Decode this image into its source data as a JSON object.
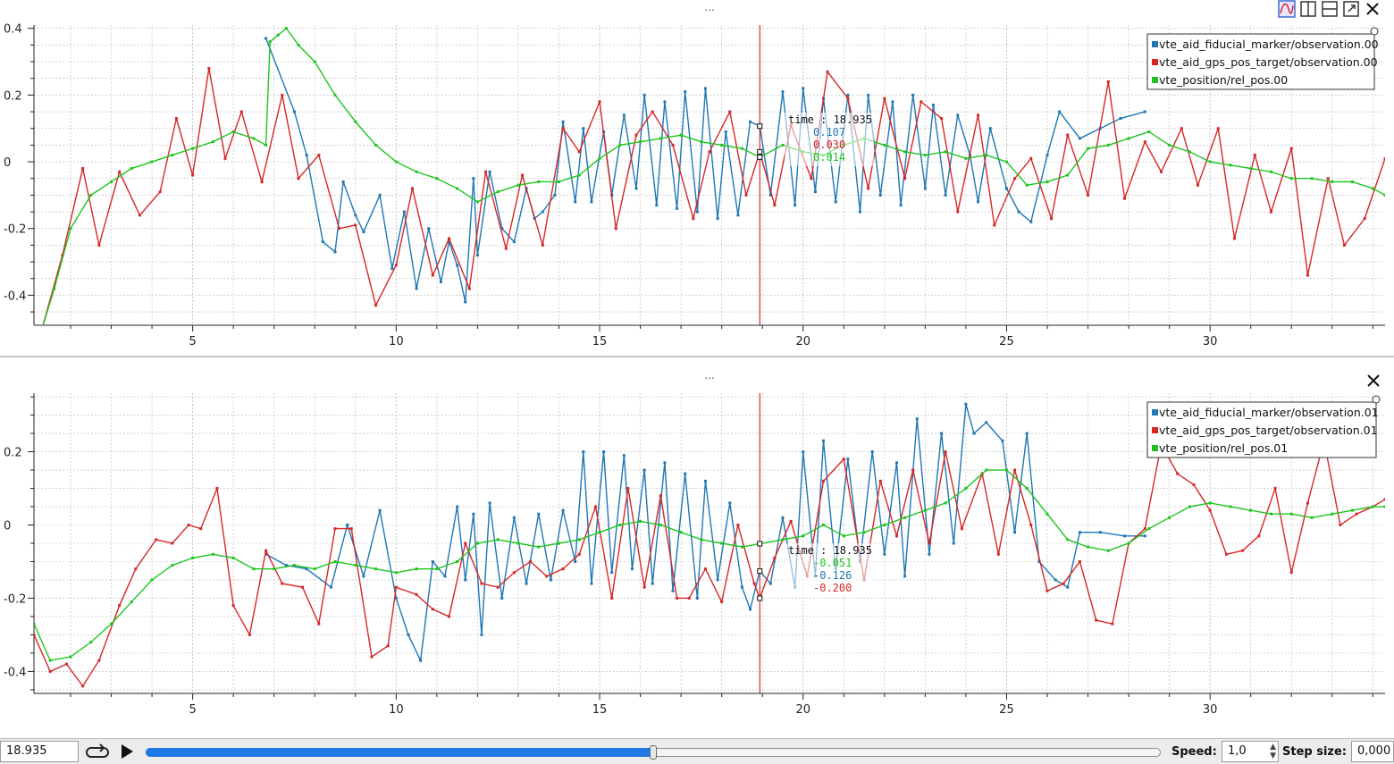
{
  "colors": {
    "blue": "#1f77b4",
    "red": "#d62728",
    "green": "#1ec41e",
    "tracker": "#cc0000",
    "grid": "#b8b8b8"
  },
  "plot_top": {
    "title": "...",
    "tooltip": {
      "label": "time : 18.935",
      "values": [
        "0.107",
        "0.030",
        "0.014"
      ],
      "colors": [
        "#1f77b4",
        "#d62728",
        "#1ec41e"
      ]
    },
    "legend": [
      "vte_aid_fiducial_marker/observation.00",
      "vte_aid_gps_pos_target/observation.00",
      "vte_position/rel_pos.00"
    ]
  },
  "plot_bottom": {
    "title": "...",
    "tooltip": {
      "label": "time : 18.935",
      "values": [
        "-0.051",
        "-0.126",
        "-0.200"
      ],
      "colors": [
        "#1ec41e",
        "#1f77b4",
        "#d62728"
      ]
    },
    "legend": [
      "vte_aid_fiducial_marker/observation.01",
      "vte_aid_gps_pos_target/observation.01",
      "vte_position/rel_pos.01"
    ]
  },
  "toolbar": {
    "icons": [
      "plot-layout-icon",
      "split-vertical-icon",
      "split-horizontal-icon",
      "fullscreen-icon",
      "close-icon"
    ]
  },
  "playback": {
    "current_time": "18.935",
    "speed_label": "Speed:",
    "speed_value": "1,0",
    "step_label": "Step size:",
    "step_value": "0,000",
    "progress": 0.5,
    "loop_icon": "loop-icon",
    "play_icon": "play-icon"
  },
  "chart_data": [
    {
      "type": "line",
      "xlim": [
        1.1,
        34.3
      ],
      "ylim": [
        -0.49,
        0.41
      ],
      "xticks": [
        5,
        10,
        15,
        20,
        25,
        30
      ],
      "yticks": [
        -0.4,
        -0.2,
        0,
        0.2,
        0.4
      ],
      "tracker_x": 18.935,
      "legend_position": "top-right",
      "grid": true,
      "series": [
        {
          "name": "vte_aid_fiducial_marker/observation.00",
          "color": "#1f77b4",
          "x": [
            6.8,
            7.5,
            7.8,
            8.2,
            8.5,
            8.7,
            9.0,
            9.2,
            9.6,
            9.9,
            10.2,
            10.5,
            10.8,
            11.1,
            11.3,
            11.5,
            11.7,
            11.9,
            12.0,
            12.3,
            12.6,
            12.9,
            13.2,
            13.4,
            13.6,
            13.9,
            14.1,
            14.4,
            14.6,
            14.8,
            15.1,
            15.3,
            15.6,
            15.9,
            16.1,
            16.4,
            16.6,
            16.9,
            17.1,
            17.4,
            17.6,
            17.9,
            18.1,
            18.4,
            18.7,
            18.935,
            19.2,
            19.5,
            19.8,
            20.0,
            20.3,
            20.5,
            20.8,
            21.1,
            21.4,
            21.6,
            21.9,
            22.2,
            22.4,
            22.7,
            23.0,
            23.2,
            23.5,
            23.8,
            24.1,
            24.3,
            24.6,
            25.0,
            25.3,
            25.6,
            26.0,
            26.3,
            26.8,
            27.3,
            27.8,
            28.4
          ],
          "y": [
            0.37,
            0.15,
            0.02,
            -0.24,
            -0.27,
            -0.06,
            -0.16,
            -0.21,
            -0.1,
            -0.32,
            -0.15,
            -0.38,
            -0.2,
            -0.36,
            -0.24,
            -0.31,
            -0.42,
            -0.05,
            -0.28,
            -0.03,
            -0.2,
            -0.24,
            -0.08,
            -0.17,
            -0.15,
            -0.1,
            0.12,
            -0.12,
            0.1,
            -0.12,
            0.09,
            -0.1,
            0.14,
            -0.08,
            0.2,
            -0.13,
            0.18,
            -0.14,
            0.21,
            -0.15,
            0.22,
            -0.17,
            0.09,
            -0.16,
            0.12,
            0.107,
            -0.1,
            0.21,
            -0.13,
            0.22,
            -0.09,
            0.19,
            -0.12,
            0.2,
            -0.15,
            0.2,
            -0.1,
            0.18,
            -0.13,
            0.2,
            -0.08,
            0.17,
            -0.1,
            0.14,
            0.02,
            -0.12,
            0.1,
            -0.08,
            -0.15,
            -0.18,
            0.02,
            0.15,
            0.07,
            0.1,
            0.13,
            0.15
          ]
        },
        {
          "name": "vte_aid_gps_pos_target/observation.00",
          "color": "#d62728",
          "x": [
            1.3,
            1.8,
            2.3,
            2.7,
            3.2,
            3.7,
            4.2,
            4.6,
            5.0,
            5.4,
            5.8,
            6.2,
            6.7,
            7.2,
            7.6,
            8.1,
            8.6,
            9.0,
            9.5,
            10.0,
            10.4,
            10.9,
            11.3,
            11.8,
            12.2,
            12.7,
            13.1,
            13.6,
            14.1,
            14.5,
            15.0,
            15.4,
            15.9,
            16.3,
            16.8,
            17.3,
            17.7,
            18.2,
            18.6,
            18.935,
            19.3,
            19.7,
            20.2,
            20.6,
            21.1,
            21.6,
            22.0,
            22.5,
            22.9,
            23.4,
            23.8,
            24.3,
            24.7,
            25.2,
            25.6,
            26.1,
            26.5,
            27.0,
            27.5,
            27.9,
            28.4,
            28.8,
            29.3,
            29.7,
            30.2,
            30.6,
            31.1,
            31.5,
            32.0,
            32.4,
            32.9,
            33.3,
            33.8,
            34.3
          ],
          "y": [
            -0.5,
            -0.28,
            -0.02,
            -0.25,
            -0.03,
            -0.16,
            -0.09,
            0.13,
            -0.04,
            0.28,
            0.01,
            0.15,
            -0.06,
            0.2,
            -0.05,
            0.02,
            -0.2,
            -0.19,
            -0.43,
            -0.31,
            -0.08,
            -0.34,
            -0.23,
            -0.38,
            -0.03,
            -0.26,
            -0.04,
            -0.25,
            0.1,
            0.03,
            0.18,
            -0.2,
            0.08,
            0.15,
            0.05,
            -0.17,
            0.03,
            0.15,
            -0.1,
            0.03,
            -0.13,
            0.11,
            -0.05,
            0.27,
            0.19,
            -0.08,
            0.19,
            -0.05,
            0.18,
            0.13,
            -0.15,
            0.14,
            -0.19,
            -0.05,
            0.01,
            -0.17,
            0.08,
            -0.1,
            0.24,
            -0.11,
            0.06,
            -0.03,
            0.1,
            -0.07,
            0.1,
            -0.23,
            0.02,
            -0.15,
            0.04,
            -0.34,
            -0.05,
            -0.25,
            -0.17,
            0.01
          ]
        },
        {
          "name": "vte_position/rel_pos.00",
          "color": "#1ec41e",
          "x": [
            1.3,
            1.6,
            2.0,
            2.5,
            3.0,
            3.5,
            4.0,
            4.5,
            5.0,
            5.5,
            6.0,
            6.5,
            6.8,
            6.9,
            7.1,
            7.3,
            7.6,
            8.0,
            8.5,
            9.0,
            9.5,
            10.0,
            10.5,
            11.0,
            11.5,
            12.0,
            12.5,
            13.0,
            13.5,
            14.0,
            14.5,
            15.0,
            15.5,
            16.0,
            16.5,
            17.0,
            17.5,
            18.0,
            18.5,
            18.935,
            19.5,
            20.0,
            20.5,
            21.0,
            21.5,
            22.0,
            22.5,
            23.0,
            23.5,
            24.0,
            24.5,
            25.0,
            25.5,
            26.0,
            26.5,
            27.0,
            27.5,
            28.0,
            28.5,
            29.0,
            29.5,
            30.0,
            30.5,
            31.0,
            31.5,
            32.0,
            32.5,
            33.0,
            33.5,
            34.0,
            34.3
          ],
          "y": [
            -0.5,
            -0.38,
            -0.2,
            -0.1,
            -0.06,
            -0.02,
            0.0,
            0.02,
            0.04,
            0.06,
            0.09,
            0.07,
            0.05,
            0.36,
            0.38,
            0.4,
            0.35,
            0.3,
            0.2,
            0.12,
            0.05,
            0.0,
            -0.03,
            -0.05,
            -0.08,
            -0.12,
            -0.09,
            -0.07,
            -0.06,
            -0.06,
            -0.04,
            0.01,
            0.05,
            0.06,
            0.07,
            0.08,
            0.06,
            0.05,
            0.04,
            0.014,
            0.05,
            0.03,
            0.02,
            0.05,
            0.07,
            0.05,
            0.03,
            0.02,
            0.03,
            0.01,
            0.02,
            0.0,
            -0.07,
            -0.06,
            -0.04,
            0.04,
            0.05,
            0.07,
            0.09,
            0.05,
            0.03,
            0.0,
            -0.01,
            -0.02,
            -0.03,
            -0.05,
            -0.05,
            -0.06,
            -0.06,
            -0.08,
            -0.1
          ]
        }
      ]
    },
    {
      "type": "line",
      "xlim": [
        1.1,
        34.3
      ],
      "ylim": [
        -0.46,
        0.36
      ],
      "xticks": [
        5,
        10,
        15,
        20,
        25,
        30
      ],
      "yticks": [
        -0.4,
        -0.2,
        0,
        0.2
      ],
      "tracker_x": 18.935,
      "legend_position": "top-right",
      "grid": true,
      "series": [
        {
          "name": "vte_aid_fiducial_marker/observation.01",
          "color": "#1f77b4",
          "x": [
            6.8,
            7.3,
            7.8,
            8.4,
            8.8,
            9.2,
            9.6,
            10.0,
            10.3,
            10.6,
            10.9,
            11.2,
            11.5,
            11.7,
            11.9,
            12.1,
            12.3,
            12.6,
            12.9,
            13.2,
            13.5,
            13.8,
            14.1,
            14.4,
            14.6,
            14.8,
            15.1,
            15.3,
            15.6,
            15.8,
            16.1,
            16.3,
            16.6,
            16.8,
            17.1,
            17.4,
            17.6,
            17.9,
            18.2,
            18.5,
            18.7,
            18.935,
            19.2,
            19.5,
            19.8,
            20.0,
            20.3,
            20.5,
            20.8,
            21.1,
            21.4,
            21.7,
            22.0,
            22.3,
            22.5,
            22.8,
            23.1,
            23.4,
            23.7,
            24.0,
            24.2,
            24.5,
            24.9,
            25.2,
            25.5,
            25.8,
            26.2,
            26.5,
            26.8,
            27.3,
            27.9,
            28.4
          ],
          "y": [
            -0.08,
            -0.11,
            -0.12,
            -0.17,
            0.0,
            -0.14,
            0.04,
            -0.2,
            -0.3,
            -0.37,
            -0.1,
            -0.14,
            0.05,
            -0.15,
            0.03,
            -0.3,
            0.06,
            -0.2,
            0.02,
            -0.16,
            0.03,
            -0.15,
            0.04,
            -0.1,
            0.2,
            -0.16,
            0.2,
            -0.13,
            0.19,
            -0.12,
            0.15,
            -0.16,
            0.17,
            -0.18,
            0.14,
            -0.2,
            0.12,
            -0.15,
            0.06,
            -0.17,
            -0.23,
            -0.126,
            -0.16,
            0.02,
            -0.17,
            0.2,
            -0.14,
            0.23,
            -0.12,
            0.18,
            -0.1,
            0.2,
            -0.08,
            0.17,
            -0.14,
            0.29,
            -0.08,
            0.25,
            -0.05,
            0.33,
            0.25,
            0.28,
            0.23,
            -0.02,
            0.25,
            -0.1,
            -0.15,
            -0.17,
            -0.02,
            -0.02,
            -0.03,
            -0.03
          ]
        },
        {
          "name": "vte_aid_gps_pos_target/observation.01",
          "color": "#d62728",
          "x": [
            1.1,
            1.5,
            1.9,
            2.3,
            2.7,
            3.2,
            3.6,
            4.1,
            4.5,
            4.9,
            5.2,
            5.6,
            6.0,
            6.4,
            6.8,
            7.2,
            7.7,
            8.1,
            8.5,
            8.9,
            9.4,
            9.8,
            10.0,
            10.5,
            10.9,
            11.3,
            11.7,
            12.1,
            12.5,
            12.9,
            13.3,
            13.7,
            14.1,
            14.5,
            14.9,
            15.3,
            15.7,
            16.1,
            16.5,
            16.9,
            17.2,
            17.6,
            18.0,
            18.4,
            18.8,
            18.935,
            19.3,
            19.7,
            20.1,
            20.5,
            21.0,
            21.5,
            21.9,
            22.3,
            22.7,
            23.1,
            23.5,
            23.9,
            24.4,
            24.8,
            25.2,
            25.6,
            26.0,
            26.4,
            26.8,
            27.2,
            27.6,
            28.0,
            28.4,
            28.8,
            29.2,
            29.6,
            30.0,
            30.4,
            30.8,
            31.2,
            31.6,
            32.0,
            32.4,
            32.8,
            33.2,
            33.6,
            34.0,
            34.3
          ],
          "y": [
            -0.3,
            -0.4,
            -0.38,
            -0.44,
            -0.37,
            -0.22,
            -0.12,
            -0.04,
            -0.05,
            0.0,
            -0.01,
            0.1,
            -0.22,
            -0.3,
            -0.07,
            -0.16,
            -0.17,
            -0.27,
            -0.01,
            -0.01,
            -0.36,
            -0.33,
            -0.17,
            -0.19,
            -0.23,
            -0.25,
            -0.05,
            -0.16,
            -0.17,
            -0.13,
            -0.1,
            -0.14,
            -0.12,
            -0.08,
            0.05,
            -0.2,
            0.1,
            -0.17,
            0.08,
            -0.2,
            -0.2,
            -0.12,
            -0.21,
            0.0,
            -0.16,
            -0.2,
            -0.09,
            0.01,
            -0.14,
            0.12,
            0.18,
            -0.15,
            0.12,
            -0.03,
            0.15,
            -0.05,
            0.2,
            -0.01,
            0.14,
            -0.08,
            0.15,
            0.0,
            -0.18,
            -0.16,
            -0.1,
            -0.26,
            -0.27,
            -0.05,
            -0.01,
            0.22,
            0.14,
            0.11,
            0.04,
            -0.08,
            -0.07,
            -0.03,
            0.1,
            -0.13,
            0.06,
            0.23,
            0.0,
            0.03,
            0.05,
            0.07
          ]
        },
        {
          "name": "vte_position/rel_pos.01",
          "color": "#1ec41e",
          "x": [
            1.1,
            1.5,
            2.0,
            2.5,
            3.0,
            3.5,
            4.0,
            4.5,
            5.0,
            5.5,
            6.0,
            6.5,
            7.0,
            7.5,
            8.0,
            8.5,
            9.0,
            9.5,
            10.0,
            10.5,
            11.0,
            11.5,
            12.0,
            12.5,
            13.0,
            13.5,
            14.0,
            14.5,
            15.0,
            15.5,
            16.0,
            16.5,
            17.0,
            17.5,
            18.0,
            18.5,
            18.935,
            19.5,
            20.0,
            20.5,
            21.0,
            21.5,
            22.0,
            22.5,
            23.0,
            23.5,
            24.0,
            24.5,
            25.0,
            25.5,
            26.0,
            26.5,
            27.0,
            27.5,
            28.0,
            28.5,
            29.0,
            29.5,
            30.0,
            30.5,
            31.0,
            31.5,
            32.0,
            32.5,
            33.0,
            33.5,
            34.0,
            34.3
          ],
          "y": [
            -0.27,
            -0.37,
            -0.36,
            -0.32,
            -0.27,
            -0.21,
            -0.15,
            -0.11,
            -0.09,
            -0.08,
            -0.09,
            -0.12,
            -0.12,
            -0.11,
            -0.12,
            -0.1,
            -0.11,
            -0.12,
            -0.13,
            -0.12,
            -0.12,
            -0.1,
            -0.05,
            -0.04,
            -0.05,
            -0.06,
            -0.05,
            -0.04,
            -0.02,
            0.0,
            0.01,
            0.0,
            -0.02,
            -0.04,
            -0.05,
            -0.06,
            -0.051,
            -0.04,
            -0.03,
            0.0,
            -0.03,
            -0.02,
            0.0,
            0.02,
            0.04,
            0.06,
            0.1,
            0.15,
            0.15,
            0.1,
            0.03,
            -0.04,
            -0.06,
            -0.07,
            -0.05,
            -0.01,
            0.02,
            0.05,
            0.06,
            0.05,
            0.04,
            0.03,
            0.03,
            0.02,
            0.03,
            0.04,
            0.05,
            0.05
          ]
        }
      ]
    }
  ]
}
